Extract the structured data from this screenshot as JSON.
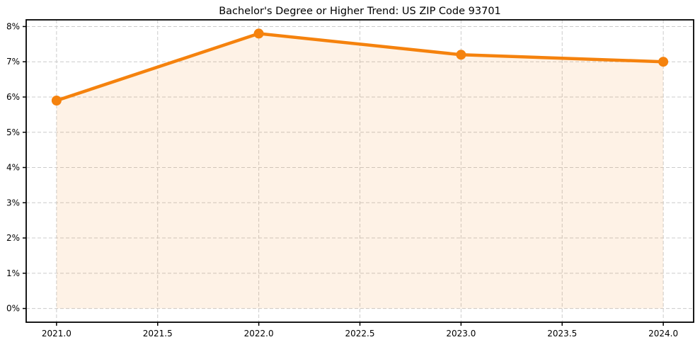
{
  "chart_data": {
    "type": "line",
    "title": "Bachelor's Degree or Higher Trend: US ZIP Code 93701",
    "x": [
      2021,
      2022,
      2023,
      2024
    ],
    "values": [
      5.9,
      7.8,
      7.2,
      7.0
    ],
    "xlabel": "",
    "ylabel": "",
    "xlim": [
      2020.85,
      2024.15
    ],
    "ylim": [
      -0.39,
      8.19
    ],
    "xticks": [
      2021.0,
      2021.5,
      2022.0,
      2022.5,
      2023.0,
      2023.5,
      2024.0
    ],
    "xtick_labels": [
      "2021.0",
      "2021.5",
      "2022.0",
      "2022.5",
      "2023.0",
      "2023.5",
      "2024.0"
    ],
    "yticks": [
      0,
      1,
      2,
      3,
      4,
      5,
      6,
      7,
      8
    ],
    "ytick_labels": [
      "0%",
      "1%",
      "2%",
      "3%",
      "4%",
      "5%",
      "6%",
      "7%",
      "8%"
    ],
    "grid": "dashed",
    "legend": "none",
    "area_fill": true,
    "fill_baseline": 0,
    "colors": {
      "line": "#f5820d",
      "marker": "#f5820d",
      "area_fill": "rgba(245,130,13,0.10)",
      "gridline": "#cccccc",
      "spine": "#000000",
      "tick_label": "#000000"
    }
  }
}
